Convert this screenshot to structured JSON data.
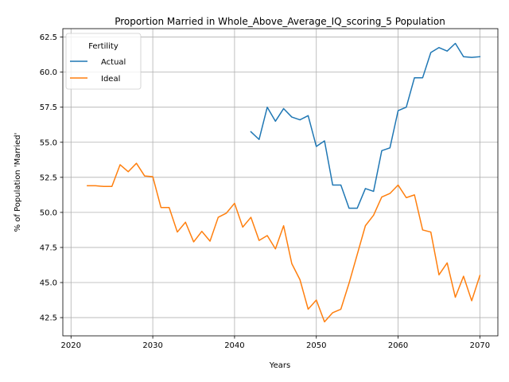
{
  "chart_data": {
    "type": "line",
    "title": "Proportion Married in Whole_Above_Average_IQ_scoring_5 Population",
    "xlabel": "Years",
    "ylabel": "% of Population 'Married'",
    "xlim": [
      2019,
      2072.2
    ],
    "ylim": [
      41.2,
      63.1
    ],
    "xticks": [
      2020,
      2030,
      2040,
      2050,
      2060,
      2070
    ],
    "yticks": [
      42.5,
      45.0,
      47.5,
      50.0,
      52.5,
      55.0,
      57.5,
      60.0,
      62.5
    ],
    "xtick_labels": [
      "2020",
      "2030",
      "2040",
      "2050",
      "2060",
      "2070"
    ],
    "ytick_labels": [
      "42.5",
      "45.0",
      "47.5",
      "50.0",
      "52.5",
      "55.0",
      "57.5",
      "60.0",
      "62.5"
    ],
    "grid": true,
    "legend": {
      "title": "Fertility",
      "position": "top-left"
    },
    "series": [
      {
        "name": "Actual",
        "color": "#1f77b4",
        "x": [
          2042,
          2043,
          2044,
          2045,
          2046,
          2047,
          2048,
          2049,
          2050,
          2051,
          2052,
          2053,
          2054,
          2055,
          2056,
          2057,
          2058,
          2059,
          2060,
          2061,
          2062,
          2063,
          2064,
          2065,
          2066,
          2067,
          2068,
          2069,
          2070
        ],
        "y": [
          55.75,
          55.2,
          57.5,
          56.5,
          57.4,
          56.8,
          56.6,
          56.9,
          54.7,
          55.1,
          51.95,
          51.95,
          50.3,
          50.3,
          51.7,
          51.5,
          54.4,
          54.6,
          57.25,
          57.5,
          59.6,
          59.6,
          61.4,
          61.75,
          61.5,
          62.05,
          61.1,
          61.05,
          61.1
        ]
      },
      {
        "name": "Ideal",
        "color": "#ff7f0e",
        "x": [
          2022,
          2023,
          2024,
          2025,
          2026,
          2027,
          2028,
          2029,
          2030,
          2031,
          2032,
          2033,
          2034,
          2035,
          2036,
          2037,
          2038,
          2039,
          2040,
          2041,
          2042,
          2043,
          2044,
          2045,
          2046,
          2047,
          2048,
          2049,
          2050,
          2051,
          2052,
          2053,
          2054,
          2055,
          2056,
          2057,
          2058,
          2059,
          2060,
          2061,
          2062,
          2063,
          2064,
          2065,
          2066,
          2067,
          2068,
          2069,
          2070
        ],
        "y": [
          51.9,
          51.9,
          51.85,
          51.85,
          53.4,
          52.9,
          53.5,
          52.6,
          52.55,
          50.35,
          50.35,
          48.6,
          49.3,
          47.9,
          48.65,
          47.95,
          49.65,
          49.95,
          50.65,
          48.95,
          49.65,
          48.0,
          48.35,
          47.4,
          49.05,
          46.35,
          45.2,
          43.1,
          43.75,
          42.2,
          42.85,
          43.1,
          44.95,
          47.0,
          49.05,
          49.8,
          51.1,
          51.35,
          51.95,
          51.05,
          51.25,
          48.75,
          48.6,
          45.55,
          46.4,
          43.95,
          45.45,
          43.7,
          45.5
        ]
      }
    ]
  }
}
